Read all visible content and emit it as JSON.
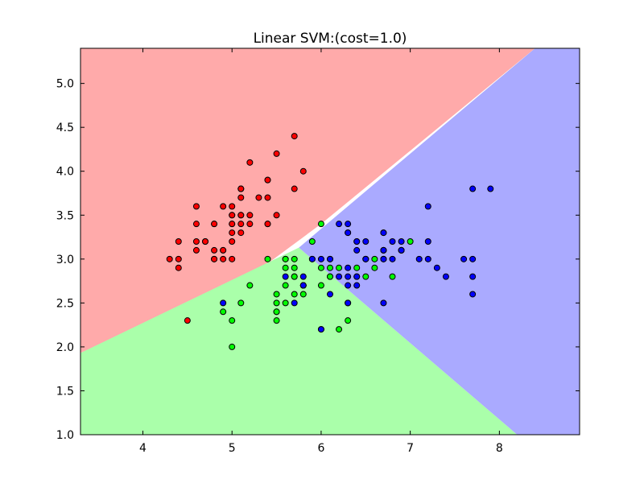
{
  "chart_data": {
    "type": "scatter",
    "title": "Linear SVM:(cost=1.0)",
    "xlabel": "",
    "ylabel": "",
    "xlim": [
      3.3,
      8.9
    ],
    "ylim": [
      1.0,
      5.4
    ],
    "x_ticks": [
      4,
      5,
      6,
      7,
      8
    ],
    "y_ticks": [
      1.0,
      1.5,
      2.0,
      2.5,
      3.0,
      3.5,
      4.0,
      4.5,
      5.0
    ],
    "x_tick_labels": [
      "4",
      "5",
      "6",
      "7",
      "8"
    ],
    "y_tick_labels": [
      "1.0",
      "1.5",
      "2.0",
      "2.5",
      "3.0",
      "3.5",
      "4.0",
      "4.5",
      "5.0"
    ],
    "grid": false,
    "legend": "none",
    "regions": [
      {
        "class": 0,
        "color": "#ffaaaa",
        "polygon": [
          [
            3.3,
            1.93
          ],
          [
            3.3,
            5.4
          ],
          [
            8.4,
            5.4
          ],
          [
            6.0,
            3.4
          ],
          [
            5.2,
            2.8
          ]
        ]
      },
      {
        "class": 1,
        "color": "#aaffaa",
        "polygon": [
          [
            3.3,
            1.0
          ],
          [
            3.3,
            1.93
          ],
          [
            5.75,
            3.13
          ],
          [
            8.2,
            1.0
          ]
        ]
      },
      {
        "class": 2,
        "color": "#aaaaff",
        "polygon": [
          [
            8.2,
            1.0
          ],
          [
            5.75,
            3.13
          ],
          [
            8.4,
            5.4
          ],
          [
            8.9,
            5.4
          ],
          [
            8.9,
            1.0
          ]
        ]
      }
    ],
    "series": [
      {
        "class": 0,
        "color": "#ff0000",
        "points": [
          [
            5.1,
            3.5
          ],
          [
            4.9,
            3.0
          ],
          [
            4.7,
            3.2
          ],
          [
            4.6,
            3.1
          ],
          [
            5.0,
            3.6
          ],
          [
            5.4,
            3.9
          ],
          [
            4.6,
            3.4
          ],
          [
            5.0,
            3.4
          ],
          [
            4.4,
            2.9
          ],
          [
            4.9,
            3.1
          ],
          [
            5.4,
            3.7
          ],
          [
            4.8,
            3.4
          ],
          [
            4.8,
            3.0
          ],
          [
            4.3,
            3.0
          ],
          [
            5.8,
            4.0
          ],
          [
            5.7,
            4.4
          ],
          [
            5.4,
            3.9
          ],
          [
            5.1,
            3.5
          ],
          [
            5.7,
            3.8
          ],
          [
            5.1,
            3.8
          ],
          [
            5.4,
            3.4
          ],
          [
            5.1,
            3.7
          ],
          [
            4.6,
            3.6
          ],
          [
            5.1,
            3.3
          ],
          [
            4.8,
            3.4
          ],
          [
            5.0,
            3.0
          ],
          [
            5.0,
            3.4
          ],
          [
            5.2,
            3.5
          ],
          [
            5.2,
            3.4
          ],
          [
            4.7,
            3.2
          ],
          [
            4.8,
            3.1
          ],
          [
            5.4,
            3.4
          ],
          [
            5.2,
            4.1
          ],
          [
            5.5,
            4.2
          ],
          [
            4.9,
            3.1
          ],
          [
            5.0,
            3.2
          ],
          [
            5.5,
            3.5
          ],
          [
            4.9,
            3.6
          ],
          [
            4.4,
            3.0
          ],
          [
            5.1,
            3.4
          ],
          [
            5.0,
            3.5
          ],
          [
            4.5,
            2.3
          ],
          [
            4.4,
            3.2
          ],
          [
            5.0,
            3.5
          ],
          [
            5.1,
            3.8
          ],
          [
            4.8,
            3.0
          ],
          [
            5.1,
            3.8
          ],
          [
            4.6,
            3.2
          ],
          [
            5.3,
            3.7
          ],
          [
            5.0,
            3.3
          ]
        ]
      },
      {
        "class": 1,
        "color": "#00ff00",
        "points": [
          [
            7.0,
            3.2
          ],
          [
            6.4,
            3.2
          ],
          [
            6.9,
            3.1
          ],
          [
            5.5,
            2.3
          ],
          [
            6.5,
            2.8
          ],
          [
            5.7,
            2.8
          ],
          [
            6.3,
            3.3
          ],
          [
            4.9,
            2.4
          ],
          [
            6.6,
            2.9
          ],
          [
            5.2,
            2.7
          ],
          [
            5.0,
            2.0
          ],
          [
            5.9,
            3.0
          ],
          [
            6.0,
            2.2
          ],
          [
            6.1,
            2.9
          ],
          [
            5.6,
            2.9
          ],
          [
            6.7,
            3.1
          ],
          [
            5.6,
            3.0
          ],
          [
            5.8,
            2.7
          ],
          [
            6.2,
            2.2
          ],
          [
            5.6,
            2.5
          ],
          [
            5.9,
            3.2
          ],
          [
            6.1,
            2.8
          ],
          [
            6.3,
            2.5
          ],
          [
            6.1,
            2.8
          ],
          [
            6.4,
            2.9
          ],
          [
            6.6,
            3.0
          ],
          [
            6.8,
            2.8
          ],
          [
            6.7,
            3.0
          ],
          [
            6.0,
            2.9
          ],
          [
            5.7,
            2.6
          ],
          [
            5.5,
            2.4
          ],
          [
            5.5,
            2.4
          ],
          [
            5.8,
            2.7
          ],
          [
            6.0,
            2.7
          ],
          [
            5.4,
            3.0
          ],
          [
            6.0,
            3.4
          ],
          [
            6.7,
            3.1
          ],
          [
            6.3,
            2.3
          ],
          [
            5.6,
            3.0
          ],
          [
            5.5,
            2.5
          ],
          [
            5.5,
            2.6
          ],
          [
            6.1,
            3.0
          ],
          [
            5.8,
            2.6
          ],
          [
            5.0,
            2.3
          ],
          [
            5.6,
            2.7
          ],
          [
            5.7,
            3.0
          ],
          [
            5.7,
            2.9
          ],
          [
            6.2,
            2.9
          ],
          [
            5.1,
            2.5
          ],
          [
            5.7,
            2.8
          ]
        ]
      },
      {
        "class": 2,
        "color": "#0000ff",
        "points": [
          [
            6.3,
            3.3
          ],
          [
            5.8,
            2.7
          ],
          [
            7.1,
            3.0
          ],
          [
            6.3,
            2.9
          ],
          [
            6.5,
            3.0
          ],
          [
            7.6,
            3.0
          ],
          [
            4.9,
            2.5
          ],
          [
            7.3,
            2.9
          ],
          [
            6.7,
            2.5
          ],
          [
            7.2,
            3.6
          ],
          [
            6.5,
            3.2
          ],
          [
            6.4,
            2.7
          ],
          [
            6.8,
            3.0
          ],
          [
            5.7,
            2.5
          ],
          [
            5.8,
            2.8
          ],
          [
            6.4,
            3.2
          ],
          [
            6.5,
            3.0
          ],
          [
            7.7,
            3.8
          ],
          [
            7.7,
            2.6
          ],
          [
            6.0,
            2.2
          ],
          [
            6.9,
            3.2
          ],
          [
            5.6,
            2.8
          ],
          [
            7.7,
            2.8
          ],
          [
            6.3,
            2.7
          ],
          [
            6.7,
            3.3
          ],
          [
            7.2,
            3.2
          ],
          [
            6.2,
            2.8
          ],
          [
            6.1,
            3.0
          ],
          [
            6.4,
            2.8
          ],
          [
            7.2,
            3.0
          ],
          [
            7.4,
            2.8
          ],
          [
            7.9,
            3.8
          ],
          [
            6.4,
            2.8
          ],
          [
            6.3,
            2.8
          ],
          [
            6.1,
            2.6
          ],
          [
            7.7,
            3.0
          ],
          [
            6.3,
            3.4
          ],
          [
            6.4,
            3.1
          ],
          [
            6.0,
            3.0
          ],
          [
            6.9,
            3.1
          ],
          [
            6.7,
            3.1
          ],
          [
            6.9,
            3.1
          ],
          [
            5.8,
            2.7
          ],
          [
            6.8,
            3.2
          ],
          [
            6.7,
            3.3
          ],
          [
            6.7,
            3.0
          ],
          [
            6.3,
            2.5
          ],
          [
            6.5,
            3.0
          ],
          [
            6.2,
            3.4
          ],
          [
            5.9,
            3.0
          ]
        ]
      }
    ]
  }
}
